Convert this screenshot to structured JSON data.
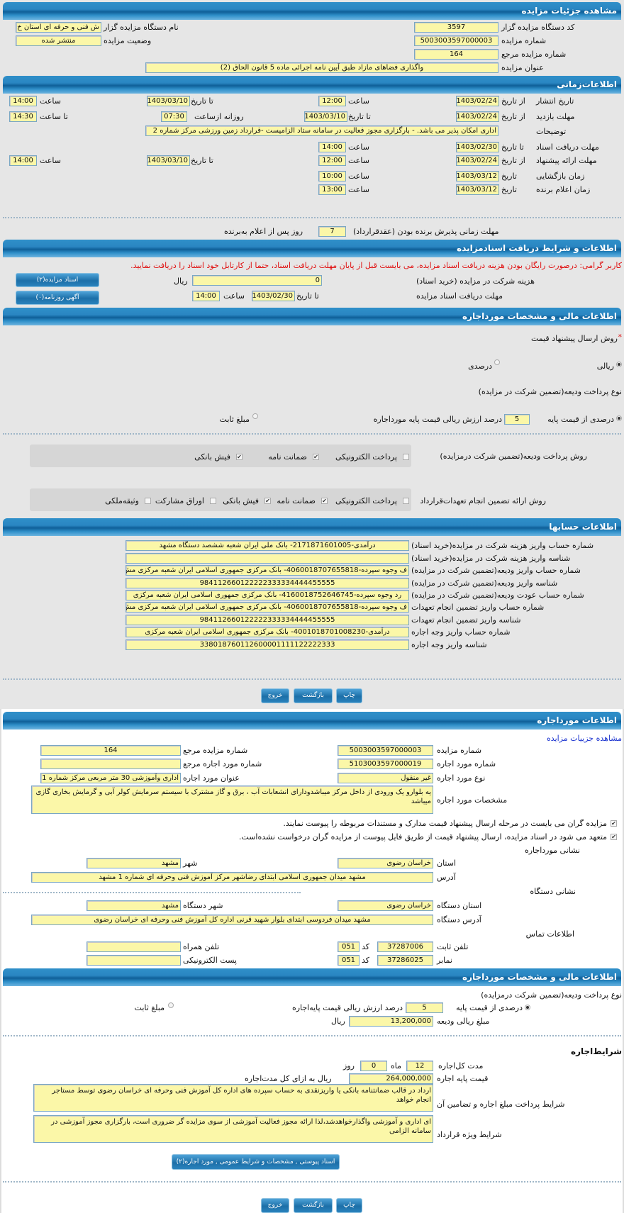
{
  "colors": {
    "header": "#1f7cbc",
    "field_bg": "#fbf7a8",
    "warning": "#e01010",
    "link": "#1d35d0",
    "upper_bg": "#e6e6e6"
  },
  "s1": {
    "title": "مشاهده جزئیات مزایده",
    "code_label": "کد دستگاه مزایده گزار",
    "code": "3597",
    "org_label": "نام دستگاه مزایده گزار",
    "org": "ش فنی و حرفه ای استان خ",
    "num_label": "شماره مزایده",
    "num": "5003003597000003",
    "status_label": "وضعیت مزایده",
    "status": "منتشر شده",
    "ref_label": "شماره مزایده مرجع",
    "ref": "164",
    "title_label": "عنوان مزایده",
    "title_value": "واگذاری فضاهای مازاد طبق آیین نامه اجرائی ماده 5 قانون الحاق (2)"
  },
  "s2": {
    "title": "اطلاعات‌زمانی",
    "from_date": "از تاریخ",
    "to_date": "تا تاریخ",
    "date": "تاریخ",
    "hour": "ساعت",
    "to_hour": "تا ساعت",
    "daily_from": "روزانه ازساعت",
    "publish_label": "تاریخ انتشار",
    "publish_from": "1403/02/24",
    "publish_from_time": "12:00",
    "publish_to": "1403/03/10",
    "publish_to_time": "14:00",
    "visit_label": "مهلت بازدید",
    "visit_from": "1403/02/24",
    "visit_to": "1403/03/10",
    "visit_daily_from": "07:30",
    "visit_to_time": "14:30",
    "desc_label": "توضیحات",
    "desc": "اداری امکان پذیر می باشد. - بارگزاری مجوز فعالیت در سامانه ستاد الزامیست -قرارداد زمین ورزشی  مرکز شماره 2",
    "docs_label": "مهلت دریافت اسناد",
    "docs_to": "1403/02/30",
    "docs_time": "14:00",
    "offer_label": "مهلت ارائه پیشنهاد",
    "offer_from": "1403/02/24",
    "offer_from_time": "12:00",
    "offer_to": "1403/03/10",
    "offer_to_time": "14:00",
    "open_label": "زمان بازگشایی",
    "open_date": "1403/03/12",
    "open_time": "10:00",
    "winner_label": "زمان اعلام برنده",
    "winner_date": "1403/03/12",
    "winner_time": "13:00",
    "accept_label": "مهلت زمانی پذیرش برنده بودن (عقدقرارداد)",
    "accept_days": "7",
    "accept_suffix": "روز پس از اعلام به‌برنده"
  },
  "s3": {
    "title": "اطلاعات و شرایط دریافت اسنادمزایده",
    "warning": "کاربر گرامی: درصورت رایگان بودن هزینه دریافت اسناد مزایده، می بایست قبل از پایان مهلت دریافت اسناد، حتما از کارتابل خود اسناد را دریافت نمایید.",
    "fee_label": "هزینه شرکت در مزایده (خرید اسناد)",
    "fee": "0",
    "rial": "ریال",
    "docs_button": "اسناد مزایده(۲)",
    "deadline_label": "مهلت دریافت اسناد مزایده",
    "to_date": "تا تاریخ",
    "deadline_date": "1403/02/30",
    "hour": "ساعت",
    "deadline_time": "14:00",
    "ad_button": "آگهی روزنامه(۰)"
  },
  "s4": {
    "title": "اطلاعات مالی و مشخصات مورداجاره",
    "required": "*",
    "method_label": "روش ارسال پیشنهاد قیمت",
    "method_rial": "ریالی",
    "method_rial_checked": true,
    "method_percent": "درصدی",
    "method_percent_checked": false,
    "deposit_type_label": "نوع پرداخت ودیعه(تضمین شرکت در مزایده)",
    "deposit_percent_label": "درصدی از قیمت پایه",
    "deposit_percent_checked": true,
    "deposit_percent": "5",
    "deposit_percent_suffix": "درصد ارزش ریالی قیمت پایه مورداجاره",
    "deposit_fixed": "مبلغ ثابت",
    "deposit_fixed_checked": false,
    "pay_method_label": "روش پرداخت ودیعه(تضمین شرکت درمزایده)",
    "pay_methods": [
      {
        "label": "پرداخت الکترونیکی",
        "checked": false
      },
      {
        "label": "ضمانت نامه",
        "checked": true
      },
      {
        "label": "فیش بانکی",
        "checked": true
      }
    ],
    "guarantee_label": "روش ارائه تضمین انجام تعهدات‌قرارداد",
    "guarantees": [
      {
        "label": "پرداخت الکترونیکی",
        "checked": false
      },
      {
        "label": "ضمانت نامه",
        "checked": true
      },
      {
        "label": "فیش بانکی",
        "checked": true
      },
      {
        "label": "اوراق مشارکت",
        "checked": false
      },
      {
        "label": "وثیقه‌ملکی",
        "checked": false
      }
    ]
  },
  "s5": {
    "title": "اطلاعات حسابها",
    "rows": [
      {
        "label": "شماره حساب واریز هزینه شرکت در مزایده(خرید اسناد)",
        "value": "درآمدی-2171871601005- بانک ملی ایران شعبه ششصد دستگاه مشهد"
      },
      {
        "label": "شناسه واریز هزینه شرکت در مزایده(خرید اسناد)",
        "value": ""
      },
      {
        "label": "شماره حساب واریز ودیعه(تضمین شرکت در مزایده)",
        "value": "ف وجوه سپرده-4060018707655818- بانک مرکزی جمهوری اسلامی ایران شعبه مرکزی مش"
      },
      {
        "label": "شناسه واریز ودیعه(تضمین شرکت در مزایده)",
        "value": "984112660122222333334444455555"
      },
      {
        "label": "شماره حساب عودت ودیعه(تضمین شرکت در مزایده)",
        "value": "رد وجوه سپرده-4160018752646745- بانک مرکزی جمهوری اسلامی ایران شعبه مرکزی"
      },
      {
        "label": "شماره حساب واریز تضمین انجام تعهدات",
        "value": "ف وجوه سپرده-4060018707655818- بانک مرکزی جمهوری اسلامی ایران شعبه مرکزی مش"
      },
      {
        "label": "شناسه واریز تضمین انجام تعهدات",
        "value": "984112660122222333334444455555"
      },
      {
        "label": "شماره حساب واریز وجه اجاره",
        "value": "درآمدی-4001018701008230- بانک مرکزی جمهوری اسلامی ایران شعبه مرکزی"
      },
      {
        "label": "شناسه واریز وجه اجاره",
        "value": "338018760112600001111122222333"
      }
    ]
  },
  "actions": {
    "print": "چاپ",
    "back": "بازگشت",
    "exit": "خروج"
  },
  "s6": {
    "title": "اطلاعات مورداجاره",
    "details_link": "مشاهده جزییات مزایده",
    "num_label": "شماره مزایده",
    "num": "5003003597000003",
    "ref_label": "شماره مزایده مرجع",
    "ref": "164",
    "item_label": "شماره مورد اجاره",
    "item": "5103003597000019",
    "item_ref_label": "شماره مورد اجاره مرجع",
    "item_ref": "",
    "type_label": "نوع مورد اجاره",
    "type": "غیر منقول",
    "item_title_label": "عنوان مورد اجاره",
    "item_title": "اداری وآموزشی 30 متر مربعی مرکز شماره 1 د",
    "spec_label": "مشخصات مورد اجاره",
    "spec": "یه بلوارو یک ورودی از داخل مرکز میباشدودارای انشعابات آب ، برق و گاز مشترک با سیستم سرمایش کولر  آبی و گرمایش بخاری گازی میباشد",
    "check1": "مزایده گران می بایست در مرحله ارسال پیشنهاد قیمت مدارک و مستندات مربوطه را پیوست نمایند.",
    "check1_checked": true,
    "check2": "متعهد می شود در اسناد مزایده، ارسال پیشنهاد قیمت از طریق فایل پیوست از مزایده گران درخواست نشده‌است.",
    "check2_checked": true,
    "address_heading": "نشانی مورداجاره",
    "province_label": "استان",
    "province": "خراسان رضوی",
    "city_label": "شهر",
    "city": "مشهد",
    "address_label": "آدرس",
    "address": "مشهد میدان جمهوری اسلامی ابتدای رضاشهر مرکز آموزش فنی وحرفه ای شماره 1 مشهد",
    "org_heading": "نشانی دستگاه",
    "org_province_label": "استان دستگاه",
    "org_province": "خراسان رضوی",
    "org_city_label": "شهر دستگاه",
    "org_city": "مشهد",
    "org_address_label": "آدرس دستگاه",
    "org_address": "مشهد میدان فردوسی ابتدای بلوار شهید قرنی اداره کل آموزش فنی وحرفه ای خراسان رضوی",
    "contact_heading": "اطلاعات تماس",
    "phone_label": "تلفن ثابت",
    "phone": "37287006",
    "code_label": "کد",
    "phone_code": "051",
    "mobile_label": "تلفن همراه",
    "mobile": "",
    "fax_label": "نمابر",
    "fax": "37286025",
    "fax_code": "051",
    "email_label": "پست الکترونیکی",
    "email": ""
  },
  "s7": {
    "title": "اطلاعات مالی و مشخصات مورداجاره",
    "deposit_type_label": "نوع پرداخت ودیعه(تضمین شرکت درمزایده)",
    "deposit_percent_label": "درصدی از قیمت پایه",
    "deposit_percent_checked": true,
    "deposit_percent": "5",
    "deposit_percent_suffix": "درصد ارزش ریالی قیمت پایه‌اجاره",
    "deposit_fixed": "مبلغ ثابت",
    "deposit_fixed_checked": false,
    "deposit_amount_label": "مبلغ ریالی ودیعه",
    "deposit_amount": "13,200,000",
    "rial": "ریال",
    "terms_heading": "شرایط‌اجاره",
    "duration_label": "مدت کل‌اجاره",
    "months": "12",
    "month_unit": "ماه",
    "days": "0",
    "day_unit": "روز",
    "base_price_label": "قیمت پایه اجاره",
    "base_price": "264,000,000",
    "base_price_suffix": "ریال به ازای کل مدت‌اجاره",
    "payment_terms_label": "شرایط پرداخت مبلغ اجاره و تضامین آن",
    "payment_terms": "ارداد در قالب ضمانتنامه بانکی یا واریزنقدی به حساب سپرده های اداره کل آموزش فنی وحرفه ای خراسان رضوی توسط مستاجر انجام خواهد",
    "special_terms_label": "شرایط ویژه قرارداد",
    "special_terms": "ای اداری و آموزشی واگذارخواهدشد،لذا ارائه مجوز فعالیت آموزشی از سوی مزایده گر ضروری است، بارگزاری مجوز آموزشی  در سامانه الزامی",
    "attachments_button": "اسناد پیوستی , مشخصات و شرایط عمومی , مورد اجاره(۲)"
  }
}
